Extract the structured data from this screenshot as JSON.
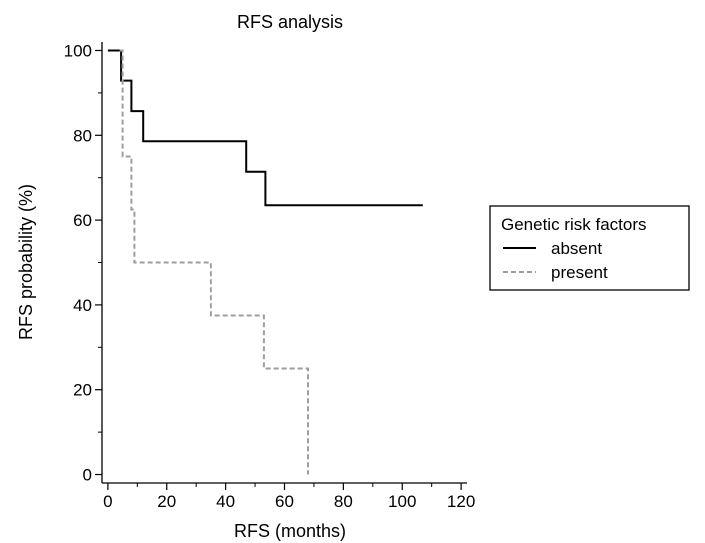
{
  "chart_data": {
    "type": "line",
    "step": true,
    "title": "RFS analysis",
    "xlabel": "RFS (months)",
    "ylabel": "RFS probability (%)",
    "xlim": [
      -2,
      122
    ],
    "ylim": [
      -2,
      102
    ],
    "xticks": [
      0,
      20,
      40,
      60,
      80,
      100,
      120
    ],
    "yticks": [
      0,
      20,
      40,
      60,
      80,
      100
    ],
    "grid": false,
    "legend": {
      "title": "Genetic risk factors",
      "position": "right"
    },
    "series": [
      {
        "name": "absent",
        "color": "#000000",
        "dash": "solid",
        "points": [
          [
            0,
            100
          ],
          [
            4.5,
            100
          ],
          [
            4.5,
            92.9
          ],
          [
            8,
            92.9
          ],
          [
            8,
            85.7
          ],
          [
            12,
            85.7
          ],
          [
            12,
            78.6
          ],
          [
            47,
            78.6
          ],
          [
            47,
            71.4
          ],
          [
            53.5,
            71.4
          ],
          [
            53.5,
            63.5
          ],
          [
            107,
            63.5
          ]
        ]
      },
      {
        "name": "present",
        "color": "#9e9e9e",
        "dash": "dashed",
        "points": [
          [
            4,
            100
          ],
          [
            5,
            100
          ],
          [
            5,
            75
          ],
          [
            8,
            75
          ],
          [
            8,
            62.5
          ],
          [
            9,
            62.5
          ],
          [
            9,
            50
          ],
          [
            35,
            50
          ],
          [
            35,
            37.5
          ],
          [
            53,
            37.5
          ],
          [
            53,
            25
          ],
          [
            68,
            25
          ],
          [
            68,
            0
          ]
        ]
      }
    ]
  }
}
